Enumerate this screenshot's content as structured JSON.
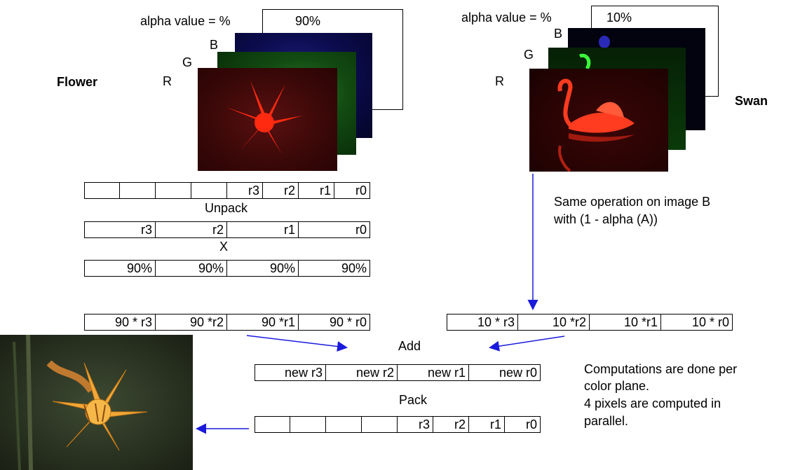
{
  "flower": {
    "title": "Flower",
    "alpha_label": "alpha value = %",
    "alpha_value": "90%",
    "plane_labels": [
      "B",
      "G",
      "R"
    ]
  },
  "swan": {
    "title": "Swan",
    "alpha_label": "alpha value = %",
    "alpha_value": "10%",
    "plane_labels": [
      "B",
      "G",
      "R"
    ]
  },
  "rows": {
    "packed_a": [
      "",
      "",
      "",
      "",
      "r3",
      "r2",
      "r1",
      "r0"
    ],
    "unpack_label": "Unpack",
    "unpacked": [
      "r3",
      "r2",
      "r1",
      "r0"
    ],
    "multiply_label": "X",
    "alpha_row": [
      "90%",
      "90%",
      "90%",
      "90%"
    ],
    "product_a": [
      "90 * r3",
      "90 *r2",
      "90 *r1",
      "90 * r0"
    ],
    "product_b": [
      "10 * r3",
      "10 *r2",
      "10 *r1",
      "10 * r0"
    ],
    "add_label": "Add",
    "sum_row": [
      "new r3",
      "new r2",
      "new r1",
      "new r0"
    ],
    "pack_label": "Pack",
    "packed_out": [
      "",
      "",
      "",
      "",
      "r3",
      "r2",
      "r1",
      "r0"
    ]
  },
  "notes": {
    "same_op_line1": "Same operation on image B",
    "same_op_line2": "with (1 - alpha (A))",
    "comp_line1": "Computations are done per",
    "comp_line2": "color plane.",
    "comp_line3": "4 pixels are computed in",
    "comp_line4": "parallel."
  },
  "colors": {
    "arrow": "#1a1adc",
    "red_plane": "#5a0a0a",
    "green_plane": "#0b3a0b",
    "blue_plane": "#0a0a3a"
  }
}
